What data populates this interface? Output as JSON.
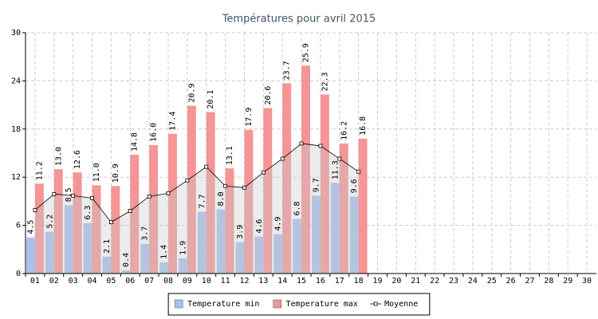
{
  "chart_data": {
    "type": "bar",
    "title": "Températures pour avril 2015",
    "categories": [
      "01",
      "02",
      "03",
      "04",
      "05",
      "06",
      "07",
      "08",
      "09",
      "10",
      "11",
      "12",
      "13",
      "14",
      "15",
      "16",
      "17",
      "18",
      "19",
      "20",
      "21",
      "22",
      "23",
      "24",
      "25",
      "26",
      "27",
      "28",
      "29",
      "30"
    ],
    "series": [
      {
        "name": "Temperature min",
        "type": "bar",
        "color": "#a9c1ed",
        "values": [
          4.5,
          5.2,
          8.5,
          6.3,
          2.1,
          0.4,
          3.7,
          1.4,
          1.9,
          7.7,
          8.0,
          3.9,
          4.6,
          4.9,
          6.8,
          9.7,
          11.3,
          9.6,
          null,
          null,
          null,
          null,
          null,
          null,
          null,
          null,
          null,
          null,
          null,
          null
        ],
        "value_labels": [
          "4.5",
          "5.2",
          "8.5",
          "6.3",
          "2.1",
          "0.4",
          "3.7",
          "1.4",
          "1.9",
          "7.7",
          "8.0",
          "3.9",
          "4.6",
          "4.9",
          "6.8",
          "9.7",
          "11.3",
          "9.6",
          null,
          null,
          null,
          null,
          null,
          null,
          null,
          null,
          null,
          null,
          null,
          null
        ]
      },
      {
        "name": "Temperature max",
        "type": "bar",
        "color": "#f59595",
        "values": [
          11.2,
          13.0,
          12.6,
          11.0,
          10.9,
          14.8,
          16.0,
          17.4,
          20.9,
          20.1,
          13.1,
          17.9,
          20.6,
          23.7,
          25.9,
          22.3,
          16.2,
          16.8,
          null,
          null,
          null,
          null,
          null,
          null,
          null,
          null,
          null,
          null,
          null,
          null
        ],
        "value_labels": [
          "11.2",
          "13.0",
          "12.6",
          "11.0",
          "10.9",
          "14.8",
          "16.0",
          "17.4",
          "20.9",
          "20.1",
          "13.1",
          "17.9",
          "20.6",
          "23.7",
          "25.9",
          "22.3",
          "16.2",
          "16.8",
          null,
          null,
          null,
          null,
          null,
          null,
          null,
          null,
          null,
          null,
          null,
          null
        ]
      },
      {
        "name": "Moyenne",
        "type": "line",
        "color": "#000000",
        "values": [
          7.9,
          9.9,
          9.7,
          9.4,
          6.4,
          7.8,
          9.6,
          10.0,
          11.6,
          13.3,
          10.9,
          10.7,
          12.6,
          14.3,
          16.2,
          15.9,
          14.3,
          12.7,
          null,
          null,
          null,
          null,
          null,
          null,
          null,
          null,
          null,
          null,
          null,
          null
        ]
      }
    ],
    "ylim": [
      0,
      30
    ],
    "yticks": [
      0,
      6,
      12,
      18,
      24,
      30
    ],
    "grid": true,
    "legend": "bottom"
  }
}
